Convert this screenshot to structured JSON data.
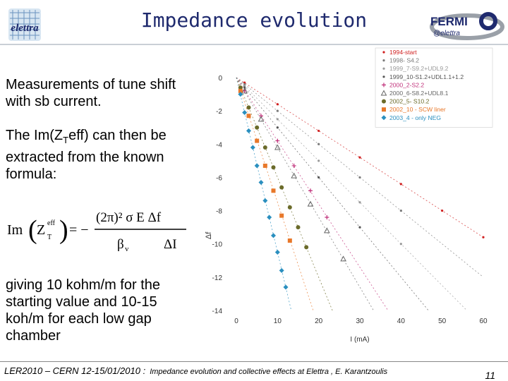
{
  "header": {
    "title": "Impedance evolution",
    "logo_left_text": "elettra",
    "logo_right_text": "FERMI",
    "logo_right_subtext": "@elettra"
  },
  "body_text": {
    "intro": "Measurements of  tune shift with sb current.",
    "extract_prefix": "The Im(Z",
    "extract_sub": "T",
    "extract_suffix": "eff) can then be extracted from the known formula:",
    "result": "giving 10 kohm/m for the starting value and 10-15 koh/m for each low gap chamber"
  },
  "formula": {
    "lhs": "Im",
    "z_symbol": "Z",
    "z_sup": "eff",
    "z_sub": "T",
    "equals": "= −",
    "num": "(2π)² σ E Δf",
    "den_left": "β",
    "den_left_sub": "v",
    "den_right": "ΔI"
  },
  "chart_data": {
    "type": "scatter",
    "title": "",
    "xlabel": "I (mA)",
    "ylabel": "Δf",
    "xlim": [
      0,
      60
    ],
    "ylim": [
      -14,
      0
    ],
    "xticks": [
      0,
      10,
      20,
      30,
      40,
      50,
      60
    ],
    "yticks": [
      0,
      -2,
      -4,
      -6,
      -8,
      -10,
      -12,
      -14
    ],
    "legend_position": "top-right",
    "series": [
      {
        "name": "1994-start",
        "color": "#d02020",
        "marker": "dot",
        "slope": -0.16,
        "x": [
          2,
          10,
          20,
          30,
          40,
          50,
          60
        ],
        "y": [
          -0.3,
          -1.6,
          -3.2,
          -4.8,
          -6.4,
          -8.0,
          -9.6
        ]
      },
      {
        "name": "1998- S4.2",
        "color": "#7a7a7a",
        "marker": "dot",
        "slope": -0.2,
        "x": [
          2,
          10,
          20,
          30,
          40
        ],
        "y": [
          -0.4,
          -2.0,
          -4.0,
          -6.0,
          -8.0
        ]
      },
      {
        "name": "1999_7-S9.2+UDL9.2",
        "color": "#9a9a9a",
        "marker": "dot",
        "slope": -0.25,
        "x": [
          2,
          10,
          20,
          30,
          40
        ],
        "y": [
          -0.5,
          -2.5,
          -5.0,
          -7.5,
          -10.0
        ]
      },
      {
        "name": "1999_10-S1.2+UDL1.1+1.2",
        "color": "#555555",
        "marker": "dot",
        "slope": -0.3,
        "x": [
          2,
          10,
          20,
          30
        ],
        "y": [
          -0.6,
          -3.0,
          -6.0,
          -9.0
        ]
      },
      {
        "name": "2000_2-S2.2",
        "color": "#c0307a",
        "marker": "plus",
        "slope": -0.38,
        "x": [
          2,
          6,
          10,
          14,
          18,
          22
        ],
        "y": [
          -0.8,
          -2.3,
          -3.8,
          -5.3,
          -6.8,
          -8.4
        ]
      },
      {
        "name": "2000_6-S8.2+UDL8.1",
        "color": "#666666",
        "marker": "triangle",
        "slope": -0.42,
        "x": [
          2,
          6,
          10,
          14,
          18,
          22,
          26
        ],
        "y": [
          -0.8,
          -2.5,
          -4.2,
          -5.9,
          -7.6,
          -9.2,
          -10.9
        ]
      },
      {
        "name": "2002_5- S10.2",
        "color": "#6b6b2a",
        "marker": "circle",
        "slope": -0.6,
        "x": [
          1,
          3,
          5,
          7,
          9,
          11,
          13,
          15,
          17
        ],
        "y": [
          -0.6,
          -1.8,
          -3.0,
          -4.2,
          -5.4,
          -6.6,
          -7.8,
          -9.0,
          -10.2
        ]
      },
      {
        "name": "2002_10 - SCW liner",
        "color": "#e8782a",
        "marker": "square",
        "slope": -0.75,
        "x": [
          1,
          3,
          5,
          7,
          9,
          11,
          13
        ],
        "y": [
          -0.8,
          -2.3,
          -3.8,
          -5.3,
          -6.8,
          -8.3,
          -9.8
        ]
      },
      {
        "name": "2003_4 - only NEG",
        "color": "#2a8fbf",
        "marker": "diamond",
        "slope": -1.05,
        "x": [
          1,
          2,
          3,
          4,
          5,
          6,
          7,
          8,
          9,
          10,
          11,
          12
        ],
        "y": [
          -1.0,
          -2.1,
          -3.2,
          -4.2,
          -5.3,
          -6.3,
          -7.4,
          -8.4,
          -9.5,
          -10.5,
          -11.6,
          -12.6
        ]
      }
    ]
  },
  "footer": {
    "conference": "LER2010 – CERN 12-15/01/2010 :",
    "subtitle": "Impedance evolution and collective effects at Elettra , E. Karantzoulis",
    "page_number": "11"
  }
}
